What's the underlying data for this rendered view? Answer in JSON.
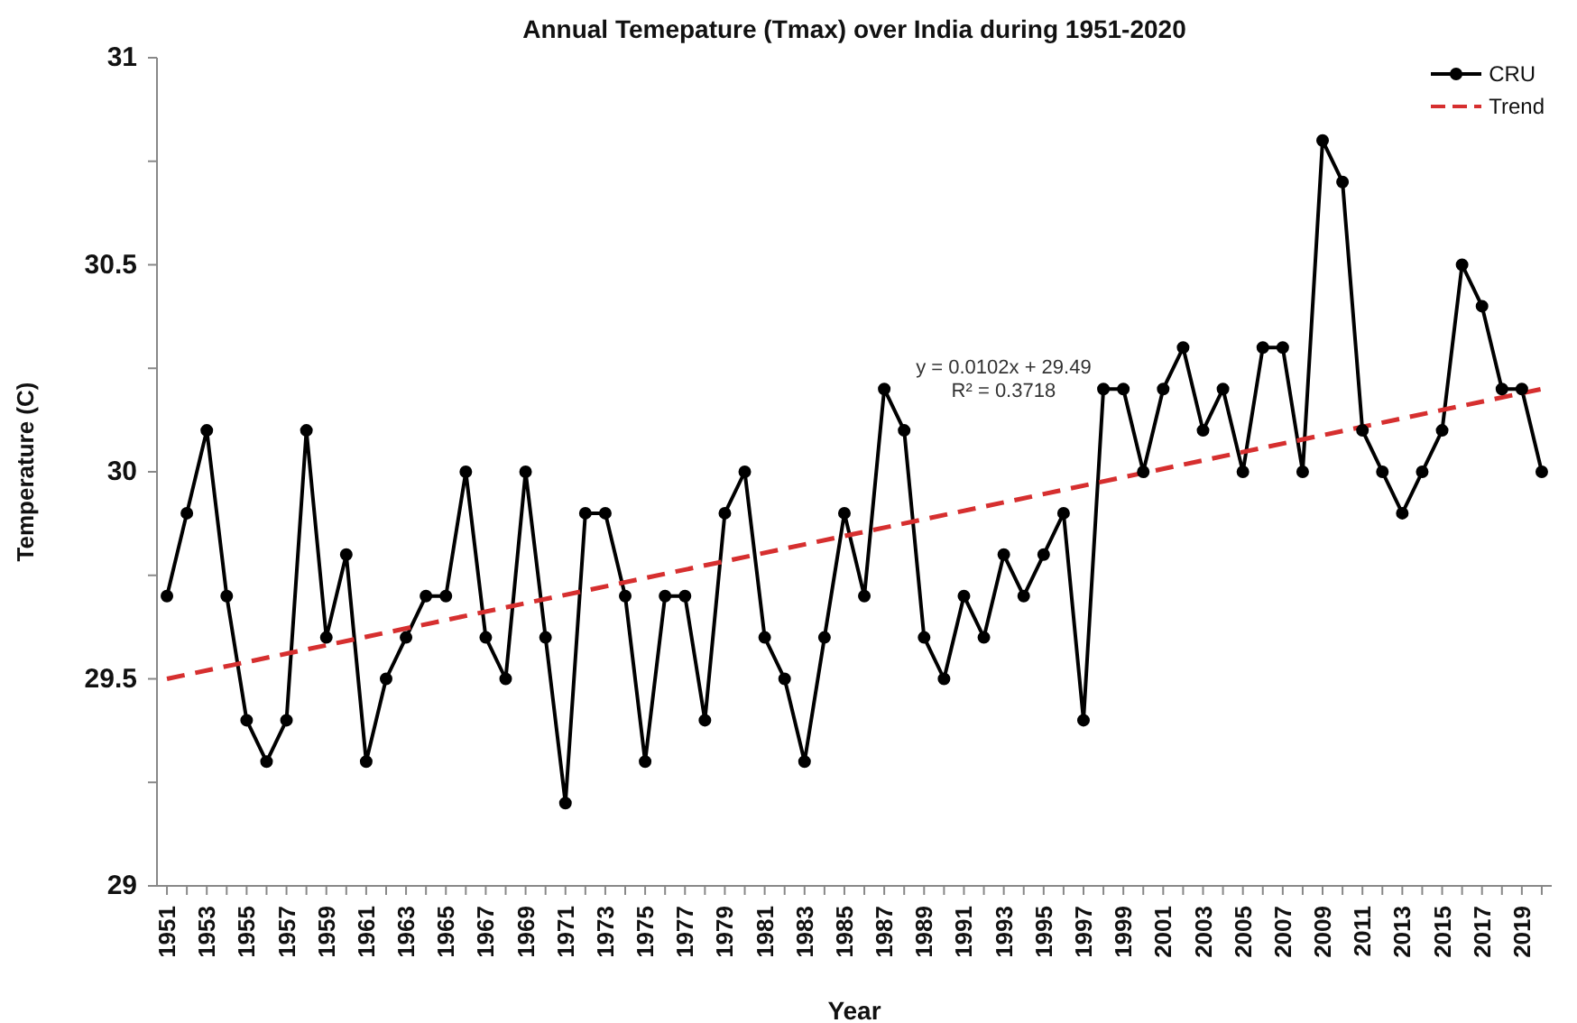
{
  "chart_data": {
    "type": "line",
    "title": "Annual Temepature (Tmax) over India during 1951-2020",
    "xlabel": "Year",
    "ylabel": "Temperature (C)",
    "annotations": [
      "y = 0.0102x + 29.49",
      "R² = 0.3718"
    ],
    "x": [
      1951,
      1952,
      1953,
      1954,
      1955,
      1956,
      1957,
      1958,
      1959,
      1960,
      1961,
      1962,
      1963,
      1964,
      1965,
      1966,
      1967,
      1968,
      1969,
      1970,
      1971,
      1972,
      1973,
      1974,
      1975,
      1976,
      1977,
      1978,
      1979,
      1980,
      1981,
      1982,
      1983,
      1984,
      1985,
      1986,
      1987,
      1988,
      1989,
      1990,
      1991,
      1992,
      1993,
      1994,
      1995,
      1996,
      1997,
      1998,
      1999,
      2000,
      2001,
      2002,
      2003,
      2004,
      2005,
      2006,
      2007,
      2008,
      2009,
      2010,
      2011,
      2012,
      2013,
      2014,
      2015,
      2016,
      2017,
      2018,
      2019,
      2020
    ],
    "xlim": [
      1950.5,
      2020.5
    ],
    "xticks": [
      1951,
      {
        "value": 1952,
        "label": null
      },
      1953,
      {
        "value": 1954,
        "label": null
      },
      1955,
      {
        "value": 1956,
        "label": null
      },
      1957,
      {
        "value": 1958,
        "label": null
      },
      1959,
      {
        "value": 1960,
        "label": null
      },
      1961,
      {
        "value": 1962,
        "label": null
      },
      1963,
      {
        "value": 1964,
        "label": null
      },
      1965,
      {
        "value": 1966,
        "label": null
      },
      1967,
      {
        "value": 1968,
        "label": null
      },
      1969,
      {
        "value": 1970,
        "label": null
      },
      1971,
      {
        "value": 1972,
        "label": null
      },
      1973,
      {
        "value": 1974,
        "label": null
      },
      1975,
      {
        "value": 1976,
        "label": null
      },
      1977,
      {
        "value": 1978,
        "label": null
      },
      1979,
      {
        "value": 1980,
        "label": null
      },
      1981,
      {
        "value": 1982,
        "label": null
      },
      1983,
      {
        "value": 1984,
        "label": null
      },
      1985,
      {
        "value": 1986,
        "label": null
      },
      1987,
      {
        "value": 1988,
        "label": null
      },
      1989,
      {
        "value": 1990,
        "label": null
      },
      1991,
      {
        "value": 1992,
        "label": null
      },
      1993,
      {
        "value": 1994,
        "label": null
      },
      1995,
      {
        "value": 1996,
        "label": null
      },
      1997,
      {
        "value": 1998,
        "label": null
      },
      1999,
      {
        "value": 2000,
        "label": null
      },
      2001,
      {
        "value": 2002,
        "label": null
      },
      2003,
      {
        "value": 2004,
        "label": null
      },
      2005,
      {
        "value": 2006,
        "label": null
      },
      2007,
      {
        "value": 2008,
        "label": null
      },
      2009,
      {
        "value": 2010,
        "label": null
      },
      2011,
      {
        "value": 2012,
        "label": null
      },
      2013,
      {
        "value": 2014,
        "label": null
      },
      2015,
      {
        "value": 2016,
        "label": null
      },
      2017,
      {
        "value": 2018,
        "label": null
      },
      2019,
      {
        "value": 2020,
        "label": null
      }
    ],
    "ylim": [
      29,
      31
    ],
    "yticks": [
      29,
      {
        "value": 29.25,
        "label": null
      },
      29.5,
      {
        "value": 29.75,
        "label": null
      },
      30,
      {
        "value": 30.25,
        "label": null
      },
      30.5,
      {
        "value": 30.75,
        "label": null
      },
      31
    ],
    "series": [
      {
        "name": "CRU",
        "color": "#000000",
        "marker": "circle",
        "line_style": "solid",
        "values": [
          29.7,
          29.9,
          30.1,
          29.7,
          29.4,
          29.3,
          29.4,
          30.1,
          29.6,
          29.8,
          29.3,
          29.5,
          29.6,
          29.7,
          29.7,
          30.0,
          29.6,
          29.5,
          30.0,
          29.6,
          29.2,
          29.9,
          29.9,
          29.7,
          29.3,
          29.7,
          29.7,
          29.4,
          29.9,
          30.0,
          29.6,
          29.5,
          29.3,
          29.6,
          29.9,
          29.7,
          30.2,
          30.1,
          29.6,
          29.5,
          29.7,
          29.6,
          29.8,
          29.7,
          29.8,
          29.9,
          29.4,
          30.2,
          30.2,
          30.0,
          30.2,
          30.3,
          30.1,
          30.2,
          30.0,
          30.3,
          30.3,
          30.0,
          30.8,
          30.7,
          30.1,
          30.0,
          29.9,
          30.0,
          30.1,
          30.5,
          30.4,
          30.2,
          30.2,
          30.0
        ]
      },
      {
        "name": "Trend",
        "type": "line",
        "color": "#d62f2f",
        "marker": "none",
        "line_style": "dashed",
        "x": [
          1951,
          2020
        ],
        "values": [
          29.5,
          30.2
        ]
      }
    ],
    "legend": "top right"
  }
}
